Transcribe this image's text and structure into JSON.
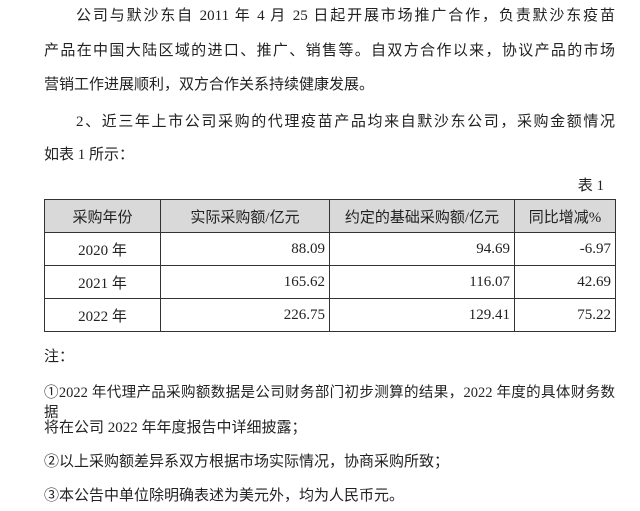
{
  "paragraphs": [
    "公司与默沙东自 2011 年 4 月 25 日起开展市场推广合作，负责默沙东疫苗",
    "产品在中国大陆区域的进口、推广、销售等。自双方合作以来，协议产品的市场",
    "营销工作进展顺利，双方合作关系持续健康发展。",
    "2、近三年上市公司采购的代理疫苗产品均来自默沙东公司，采购金额情况",
    "如表 1 所示："
  ],
  "table": {
    "caption": "表 1",
    "headers": [
      "采购年份",
      "实际采购额/亿元",
      "约定的基础采购额/亿元",
      "同比增减%"
    ],
    "rows": [
      [
        "2020 年",
        "88.09",
        "94.69",
        "-6.97"
      ],
      [
        "2021 年",
        "165.62",
        "116.07",
        "42.69"
      ],
      [
        "2022 年",
        "226.75",
        "129.41",
        "75.22"
      ]
    ]
  },
  "notes": {
    "title": "注：",
    "lines": [
      "①2022 年代理产品采购额数据是公司财务部门初步测算的结果，2022 年度的具体财务数据",
      "将在公司 2022 年年度报告中详细披露；",
      "②以上采购额差异系双方根据市场实际情况，协商采购所致；",
      "③本公告中单位除明确表述为美元外，均为人民币元。"
    ]
  }
}
